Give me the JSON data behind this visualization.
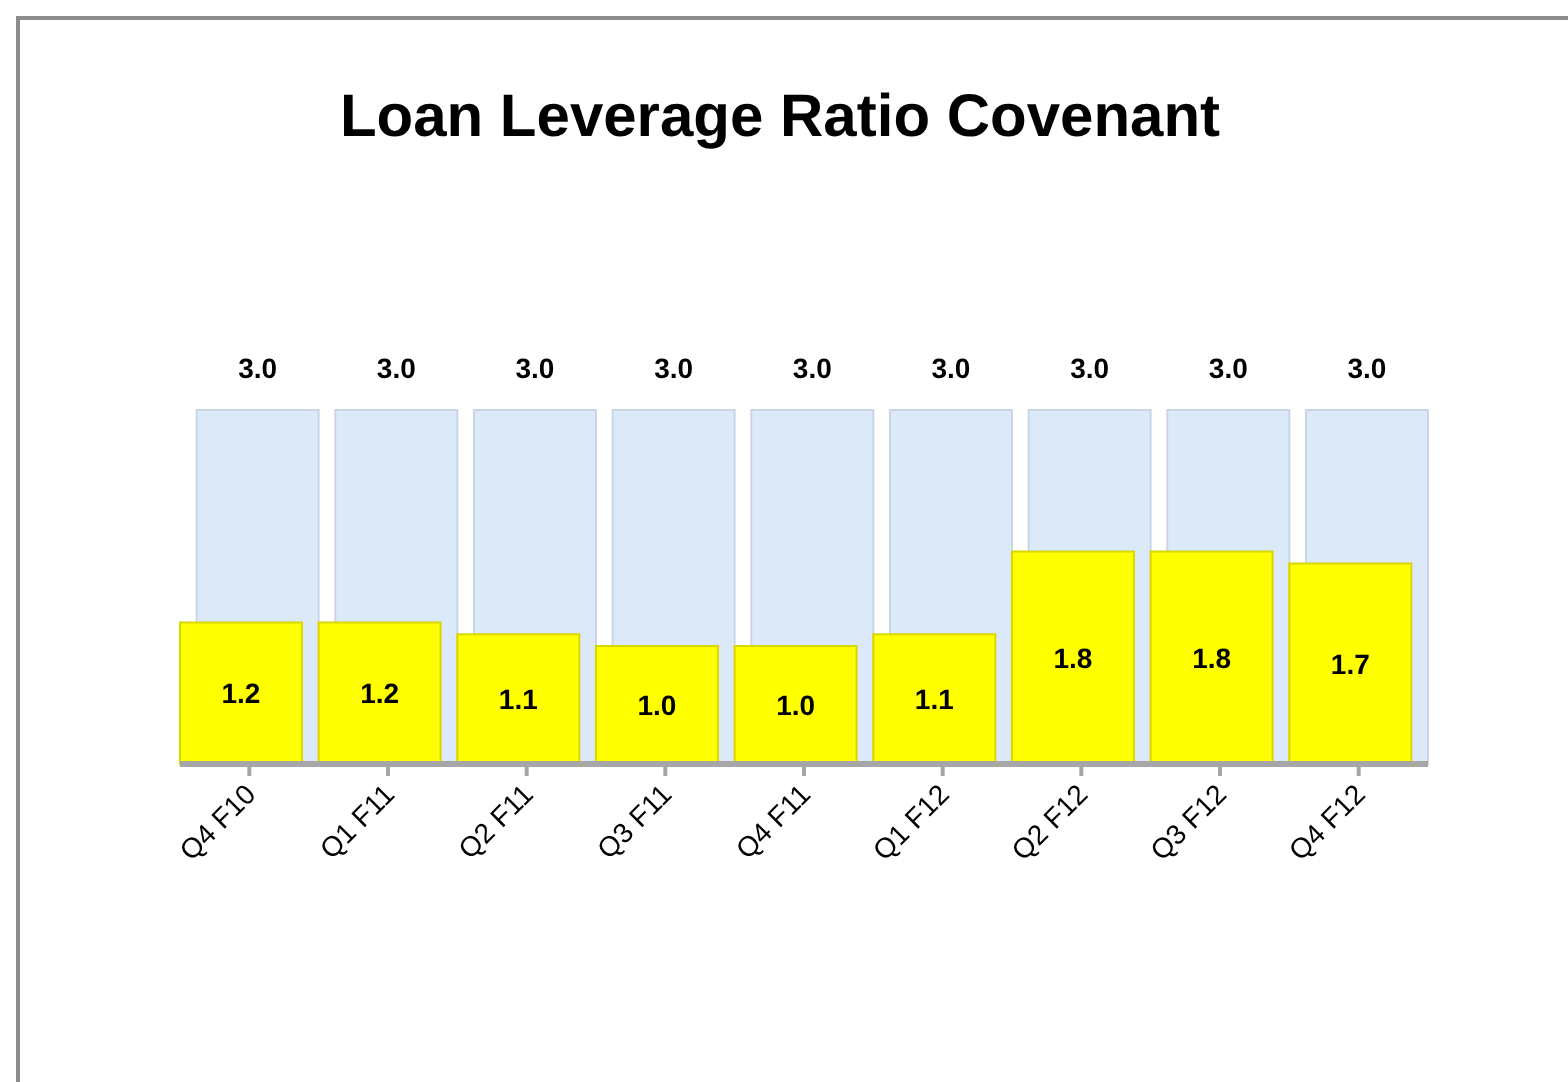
{
  "chart_data": {
    "type": "bar",
    "title": "Loan Leverage Ratio Covenant",
    "categories": [
      "Q4 F10",
      "Q1 F11",
      "Q2 F11",
      "Q3 F11",
      "Q4 F11",
      "Q1 F12",
      "Q2 F12",
      "Q3 F12",
      "Q4 F12"
    ],
    "series": [
      {
        "color": "#dce9f8",
        "values": [
          3.0,
          3.0,
          3.0,
          3.0,
          3.0,
          3.0,
          3.0,
          3.0,
          3.0
        ],
        "value_labels": [
          "3.0",
          "3.0",
          "3.0",
          "3.0",
          "3.0",
          "3.0",
          "3.0",
          "3.0",
          "3.0"
        ]
      },
      {
        "color": "#ffff00",
        "values": [
          1.2,
          1.2,
          1.1,
          1.0,
          1.0,
          1.1,
          1.8,
          1.8,
          1.7
        ],
        "value_labels": [
          "1.2",
          "1.2",
          "1.1",
          "1.0",
          "1.0",
          "1.1",
          "1.8",
          "1.8",
          "1.7"
        ]
      }
    ],
    "grid": false,
    "legend": false
  }
}
